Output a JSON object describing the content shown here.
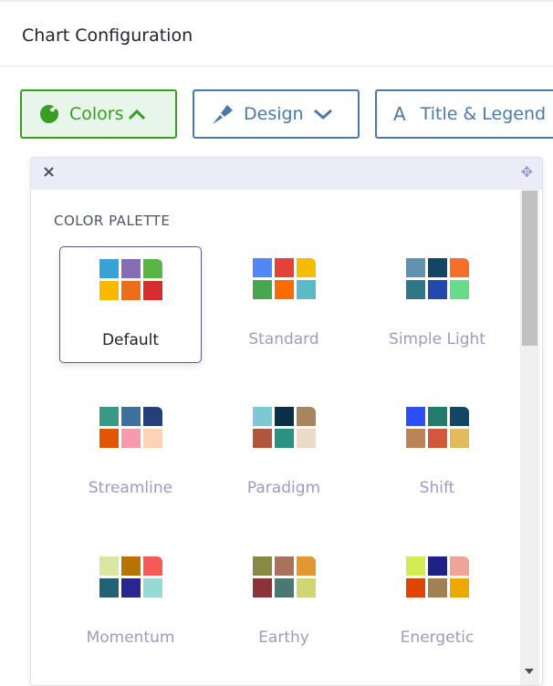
{
  "header": {
    "title": "Chart Configuration"
  },
  "tabs": [
    {
      "label": "Colors",
      "icon": "palette-icon",
      "chevron": "up",
      "active": true
    },
    {
      "label": "Design",
      "icon": "paintbrush-icon",
      "chevron": "down",
      "active": false
    },
    {
      "label": "Title & Legend",
      "icon": "letter-a-icon",
      "active": false
    }
  ],
  "popup": {
    "close": "×",
    "move": "✥",
    "section_title": "COLOR PALETTE"
  },
  "palettes": [
    {
      "name": "Default",
      "selected": true,
      "colors": [
        "#36a2d6",
        "#856db5",
        "#58b647",
        "#f8b800",
        "#ec6e1b",
        "#d42e2e"
      ]
    },
    {
      "name": "Standard",
      "colors": [
        "#5288f5",
        "#e34234",
        "#f6bc00",
        "#47a74e",
        "#f86c00",
        "#5bbac7"
      ]
    },
    {
      "name": "Simple Light",
      "colors": [
        "#6190b0",
        "#134565",
        "#f66f29",
        "#2d7786",
        "#2148ab",
        "#67dc88"
      ]
    },
    {
      "name": "Streamline",
      "colors": [
        "#369a87",
        "#3c719e",
        "#243f7a",
        "#e35500",
        "#f79aae",
        "#fcd3b5"
      ]
    },
    {
      "name": "Paradigm",
      "colors": [
        "#7ec8d6",
        "#0b2e4b",
        "#a8855f",
        "#b1563e",
        "#2c9182",
        "#eadac6"
      ]
    },
    {
      "name": "Shift",
      "colors": [
        "#2d4ff9",
        "#247a6c",
        "#134565",
        "#bb8457",
        "#d3573b",
        "#e3bb5d"
      ]
    },
    {
      "name": "Momentum",
      "colors": [
        "#d9e8a0",
        "#b87400",
        "#f45a56",
        "#216375",
        "#2a2690",
        "#96d9d5"
      ]
    },
    {
      "name": "Earthy",
      "colors": [
        "#898941",
        "#a9735b",
        "#e2982f",
        "#8b3336",
        "#4b7872",
        "#d1d574"
      ]
    },
    {
      "name": "Energetic",
      "colors": [
        "#d3ec55",
        "#20208a",
        "#f0a498",
        "#dc4600",
        "#a18052",
        "#eda900"
      ]
    }
  ]
}
